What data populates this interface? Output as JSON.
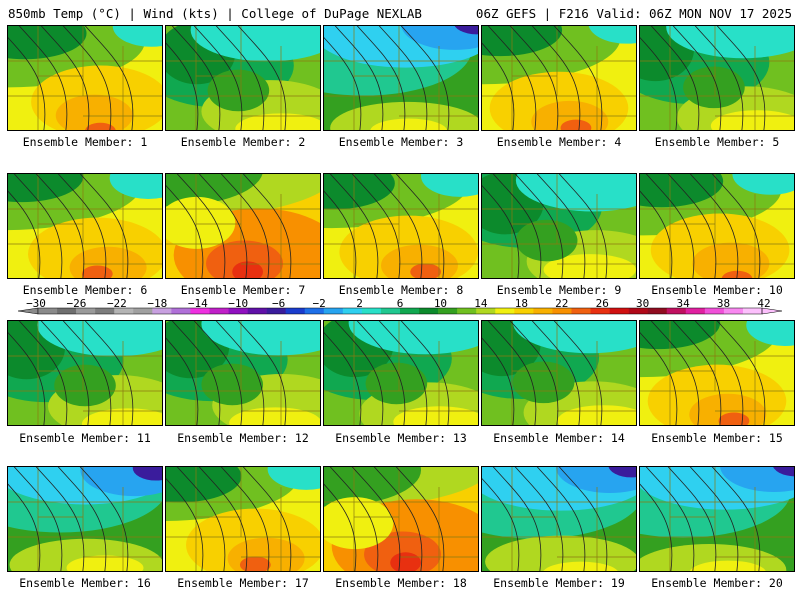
{
  "header": {
    "left": "850mb Temp (°C) | Wind (kts) | College of DuPage NEXLAB",
    "right": "06Z GEFS | F216 Valid: 06Z MON NOV 17 2025"
  },
  "colorbar": {
    "labels": [
      "−30",
      "−26",
      "−22",
      "−18",
      "−14",
      "−10",
      "−6",
      "−2",
      "2",
      "6",
      "10",
      "14",
      "18",
      "22",
      "26",
      "30",
      "34",
      "38",
      "42"
    ],
    "colors": [
      "#8a8a8a",
      "#6f6f6f",
      "#9a9a9a",
      "#7d7d7d",
      "#b4b4b4",
      "#a0a0a0",
      "#c8a0e0",
      "#b070d8",
      "#ee30e0",
      "#c020c8",
      "#9010c0",
      "#6010a8",
      "#3a1c9c",
      "#1a3ccd",
      "#1e6fe8",
      "#27a4f0",
      "#2fd0f0",
      "#28e0c8",
      "#20c890",
      "#10a850",
      "#0c8a2c",
      "#34a020",
      "#70c020",
      "#b0d820",
      "#f0f010",
      "#f8d000",
      "#f8b000",
      "#f89000",
      "#f06010",
      "#e83010",
      "#d01010",
      "#b00818",
      "#900c20",
      "#c01060",
      "#e020a0",
      "#f050d8",
      "#f888f0",
      "#fcc0fc"
    ]
  },
  "members": [
    {
      "label": "Ensemble Member: 1",
      "theme": "warm"
    },
    {
      "label": "Ensemble Member: 2",
      "theme": "mild"
    },
    {
      "label": "Ensemble Member: 3",
      "theme": "cold"
    },
    {
      "label": "Ensemble Member: 4",
      "theme": "warm"
    },
    {
      "label": "Ensemble Member: 5",
      "theme": "mild"
    },
    {
      "label": "Ensemble Member: 6",
      "theme": "warm"
    },
    {
      "label": "Ensemble Member: 7",
      "theme": "hot"
    },
    {
      "label": "Ensemble Member: 8",
      "theme": "warm"
    },
    {
      "label": "Ensemble Member: 9",
      "theme": "mild"
    },
    {
      "label": "Ensemble Member: 10",
      "theme": "warm"
    },
    {
      "label": "Ensemble Member: 11",
      "theme": "mild"
    },
    {
      "label": "Ensemble Member: 12",
      "theme": "mild"
    },
    {
      "label": "Ensemble Member: 13",
      "theme": "mild"
    },
    {
      "label": "Ensemble Member: 14",
      "theme": "mild"
    },
    {
      "label": "Ensemble Member: 15",
      "theme": "warm"
    },
    {
      "label": "Ensemble Member: 16",
      "theme": "cold"
    },
    {
      "label": "Ensemble Member: 17",
      "theme": "warm"
    },
    {
      "label": "Ensemble Member: 18",
      "theme": "hot"
    },
    {
      "label": "Ensemble Member: 19",
      "theme": "cold"
    },
    {
      "label": "Ensemble Member: 20",
      "theme": "cold"
    }
  ]
}
